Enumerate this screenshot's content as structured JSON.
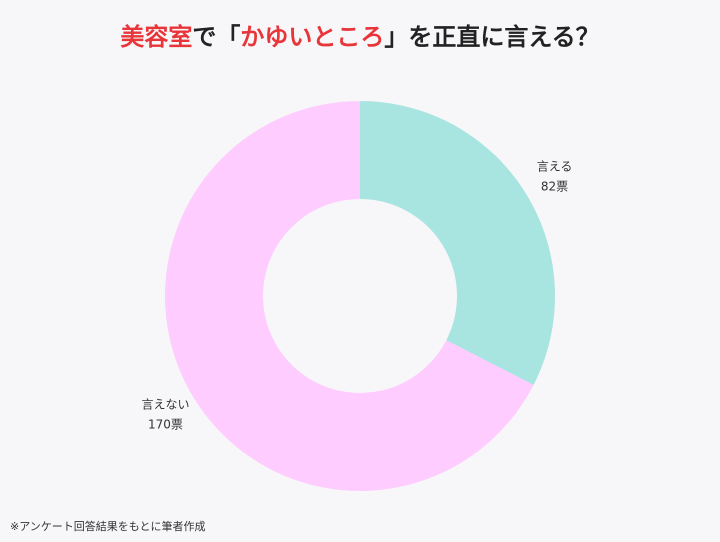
{
  "chart_data": {
    "type": "donut",
    "title": [
      {
        "text": "美容室",
        "color": "#e8353a"
      },
      {
        "text": "で「",
        "color": "#222222"
      },
      {
        "text": "かゆいところ",
        "color": "#e8353a"
      },
      {
        "text": "」を正直に言える？",
        "color": "#222222"
      }
    ],
    "categories": [
      "言える",
      "言えない"
    ],
    "values": [
      82,
      170
    ],
    "value_labels": [
      "82票",
      "170票"
    ],
    "colors": [
      "#a8e4e0",
      "#ffccff"
    ],
    "source": "※アンケート回答結果をもとに筆者作成"
  }
}
